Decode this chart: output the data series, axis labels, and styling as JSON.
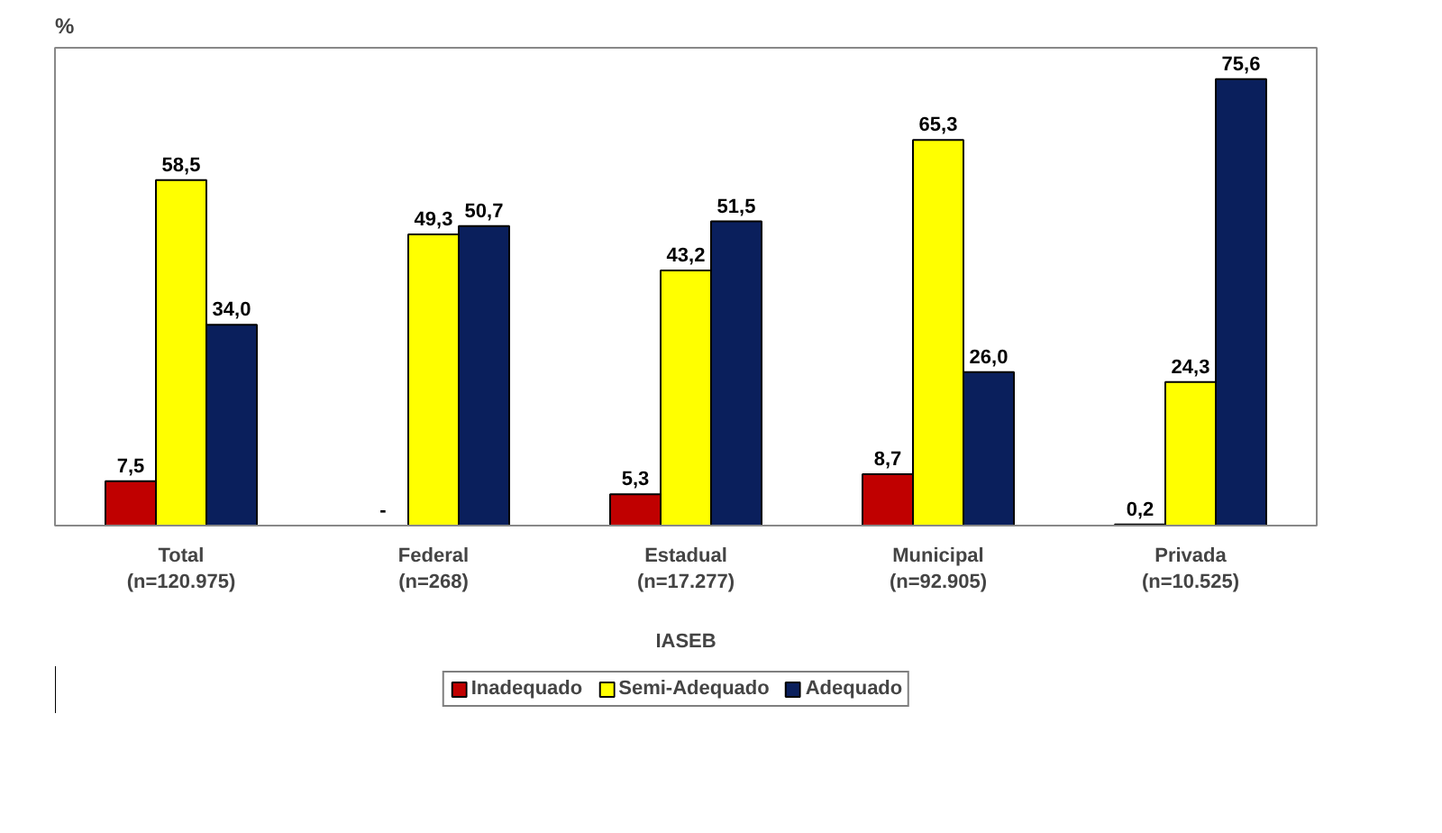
{
  "chart_data": {
    "type": "bar",
    "ylabel": "%",
    "xlabel": "IASEB",
    "categories": [
      "Total\n(n=120.975)",
      "Federal\n(n=268)",
      "Estadual\n(n=17.277)",
      "Municipal\n(n=92.905)",
      "Privada\n(n=10.525)"
    ],
    "series": [
      {
        "name": "Inadequado",
        "color": "#c00000",
        "values": [
          7.5,
          null,
          5.3,
          8.7,
          0.2
        ],
        "value_labels": [
          "7,5",
          "-",
          "5,3",
          "8,7",
          "0,2"
        ]
      },
      {
        "name": "Semi-Adequado",
        "color": "#ffff00",
        "values": [
          58.5,
          49.3,
          43.2,
          65.3,
          24.3
        ],
        "value_labels": [
          "58,5",
          "49,3",
          "43,2",
          "65,3",
          "24,3"
        ]
      },
      {
        "name": "Adequado",
        "color": "#0a1f5c",
        "values": [
          34.0,
          50.7,
          51.5,
          26.0,
          75.6
        ],
        "value_labels": [
          "34,0",
          "50,7",
          "51,5",
          "26,0",
          "75,6"
        ]
      }
    ],
    "legend": "bottom"
  }
}
